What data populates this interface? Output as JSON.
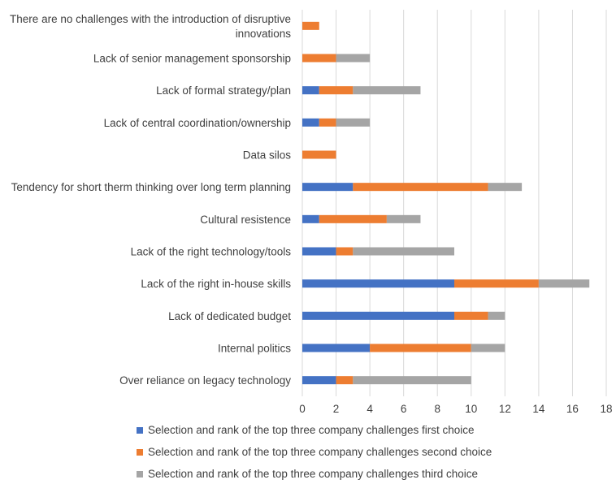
{
  "chart_data": {
    "type": "bar",
    "orientation": "horizontal",
    "stacked": true,
    "categories": [
      "There are no challenges with the introduction of disruptive innovations",
      "Lack of senior management sponsorship",
      "Lack of formal strategy/plan",
      "Lack of central coordination/ownership",
      "Data silos",
      "Tendency for short  therm thinking over long term planning",
      "Cultural resistence",
      "Lack of the right technology/tools",
      "Lack of the right in-house skills",
      "Lack of dedicated budget",
      "Internal politics",
      "Over reliance on legacy technology"
    ],
    "category_lines": [
      [
        "There are no challenges with the introduction of disruptive",
        "innovations"
      ],
      [
        "Lack of senior management sponsorship"
      ],
      [
        "Lack of formal strategy/plan"
      ],
      [
        "Lack of central coordination/ownership"
      ],
      [
        "Data silos"
      ],
      [
        "Tendency for short  therm thinking over long term planning"
      ],
      [
        "Cultural resistence"
      ],
      [
        "Lack of the right technology/tools"
      ],
      [
        "Lack of the right in-house skills"
      ],
      [
        "Lack of dedicated budget"
      ],
      [
        "Internal politics"
      ],
      [
        "Over reliance on legacy technology"
      ]
    ],
    "series": [
      {
        "name": "Selection and rank of the top three company challenges first choice",
        "color": "#4472C4",
        "values": [
          0,
          0,
          1,
          1,
          0,
          3,
          1,
          2,
          9,
          9,
          4,
          2
        ]
      },
      {
        "name": "Selection and rank of the top three company challenges second choice",
        "color": "#ED7D31",
        "values": [
          1,
          2,
          2,
          1,
          2,
          8,
          4,
          1,
          5,
          2,
          6,
          1
        ]
      },
      {
        "name": "Selection and rank of the top three company challenges third choice",
        "color": "#A5A5A5",
        "values": [
          0,
          2,
          4,
          2,
          0,
          2,
          2,
          6,
          3,
          1,
          2,
          7
        ]
      }
    ],
    "xlim": [
      0,
      18
    ],
    "xticks": [
      0,
      2,
      4,
      6,
      8,
      10,
      12,
      14,
      16,
      18
    ],
    "grid": true,
    "legend_position": "bottom",
    "title": "",
    "xlabel": "",
    "ylabel": ""
  }
}
